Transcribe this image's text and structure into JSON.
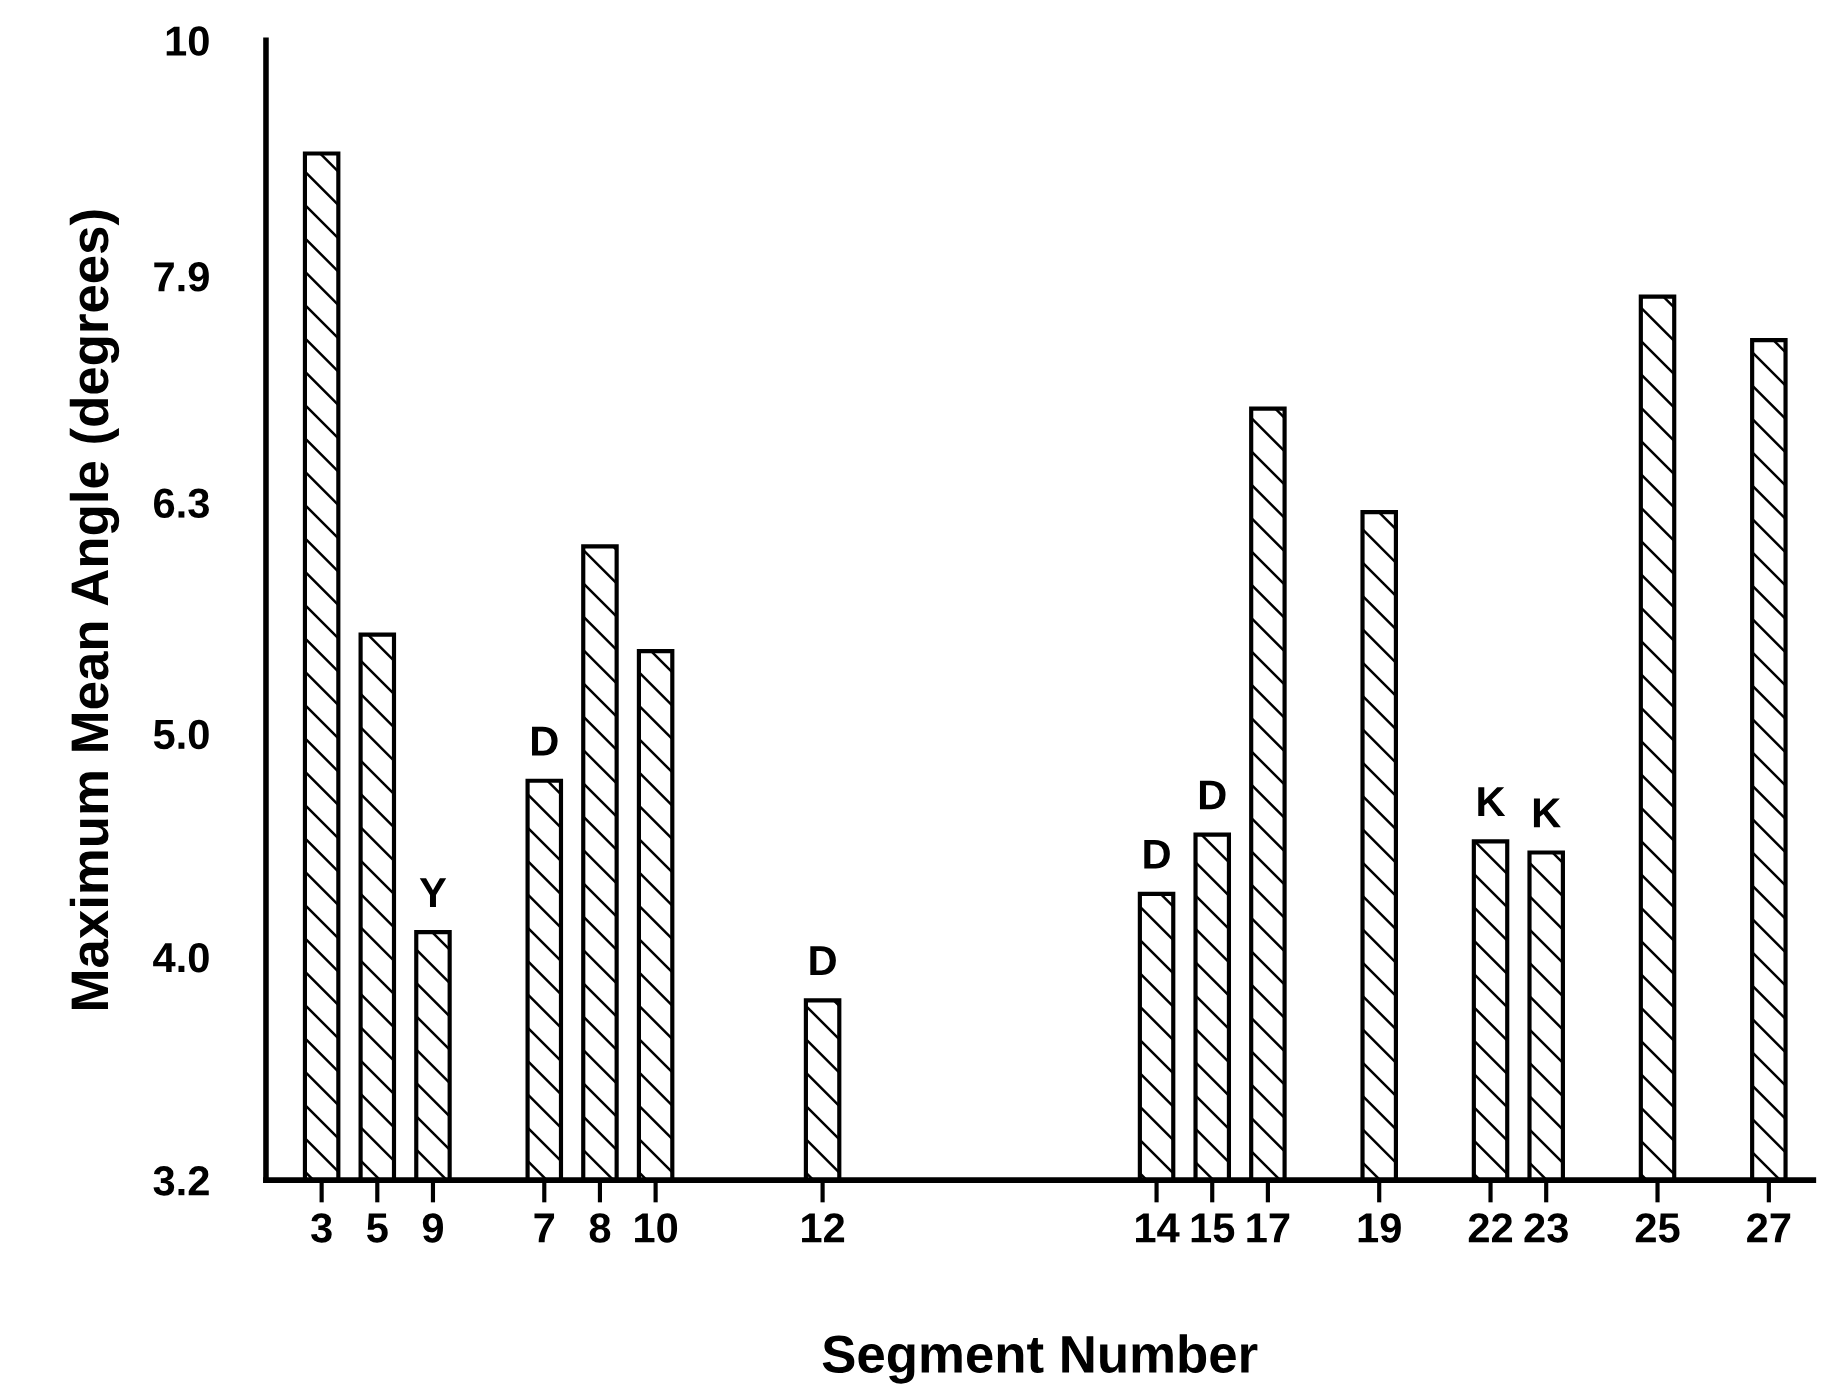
{
  "chart_data": {
    "type": "bar",
    "xlabel": "Segment Number",
    "ylabel": "Maximum Mean Angle (degrees)",
    "categories": [
      "3",
      "5",
      "9",
      null,
      "7",
      "8",
      "10",
      null,
      null,
      "12",
      null,
      null,
      null,
      null,
      null,
      "14",
      "15",
      "17",
      null,
      "19",
      null,
      "22",
      "23",
      null,
      "25",
      null,
      "27"
    ],
    "values": [
      8.93,
      5.52,
      4.1,
      null,
      4.77,
      6.03,
      5.43,
      null,
      null,
      3.83,
      null,
      null,
      null,
      null,
      null,
      4.26,
      4.52,
      6.92,
      null,
      6.24,
      null,
      4.49,
      4.44,
      null,
      7.74,
      null,
      7.41
    ],
    "color": "#000000",
    "log": true,
    "ylim": [
      3.2,
      10
    ],
    "yticks": [
      3.2,
      {
        "value": 4,
        "label": "4.0"
      },
      {
        "value": 5,
        "label": "5.0"
      },
      6.3,
      7.9,
      10
    ],
    "grid": false,
    "legend": false,
    "annotations": [
      {
        "text": "Y",
        "x": "9",
        "y": 4.1
      },
      {
        "text": "D",
        "x": "7",
        "y": 4.77
      },
      {
        "text": "D",
        "x": "12",
        "y": 3.83
      },
      {
        "text": "D",
        "x": "14",
        "y": 4.26
      },
      {
        "text": "D",
        "x": "15",
        "y": 4.52
      },
      {
        "text": "K",
        "x": "22",
        "y": 4.49
      },
      {
        "text": "K",
        "x": "23",
        "y": 4.44
      }
    ]
  }
}
